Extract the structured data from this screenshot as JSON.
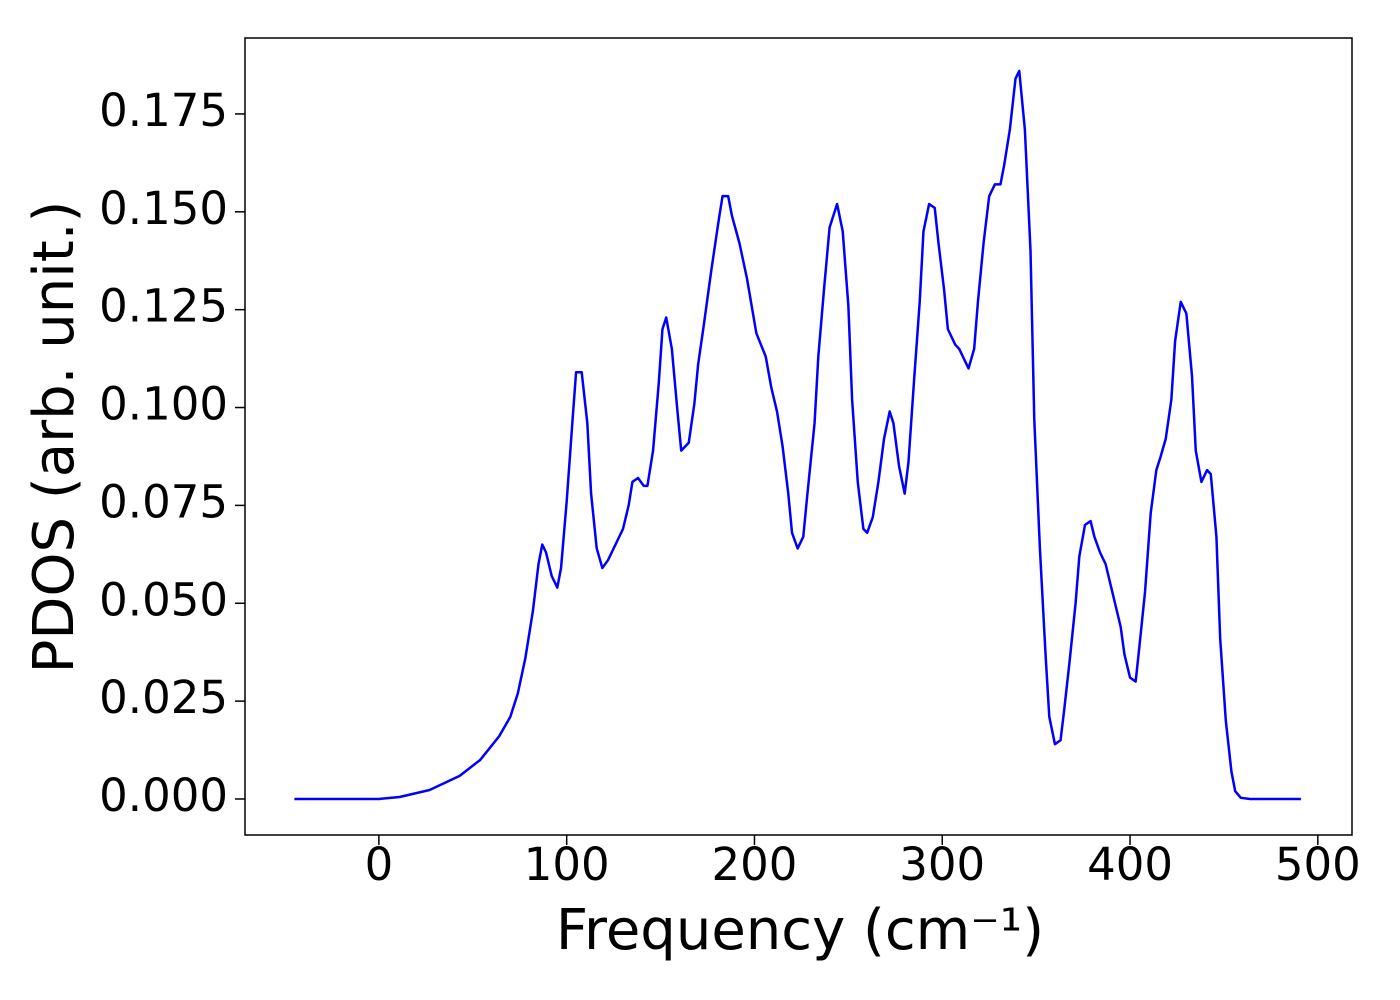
{
  "chart_data": {
    "type": "line",
    "x_label": "Frequency (cm⁻¹)",
    "y_label": "PDOS (arb. unit.)",
    "x": [
      -45,
      0,
      11,
      27,
      43,
      54,
      64,
      70,
      74,
      78,
      82,
      85,
      87,
      89,
      92,
      95,
      97,
      100,
      103,
      105,
      108,
      111,
      113,
      116,
      119,
      122,
      127,
      130,
      133,
      135,
      138,
      141,
      143,
      146,
      149,
      151,
      153,
      156,
      159,
      161,
      165,
      168,
      170,
      173,
      177,
      181,
      183,
      186,
      188,
      192,
      196,
      201,
      206,
      209,
      212,
      215,
      218,
      220,
      223,
      226,
      228,
      232,
      234,
      237,
      240,
      244,
      247,
      250,
      252,
      255,
      258,
      260,
      263,
      266,
      269,
      272,
      274,
      277,
      280,
      282,
      285,
      288,
      290,
      293,
      296,
      298,
      301,
      303,
      307,
      309,
      312,
      314,
      317,
      319,
      322,
      325,
      328,
      331,
      333,
      336,
      339,
      341,
      344,
      347,
      349,
      352,
      355,
      357,
      360,
      363,
      365,
      368,
      371,
      373,
      376,
      379,
      381,
      384,
      387,
      389,
      392,
      395,
      397,
      400,
      403,
      405,
      408,
      411,
      414,
      416,
      419,
      422,
      424,
      427,
      430,
      433,
      435,
      438,
      441,
      443,
      446,
      448,
      451,
      454,
      456,
      459,
      464,
      491
    ],
    "series": [
      {
        "name": "PDOS",
        "color": "#0000ff",
        "values": [
          0,
          0,
          0.0005,
          0.0023,
          0.0059,
          0.01,
          0.016,
          0.021,
          0.027,
          0.036,
          0.048,
          0.06,
          0.065,
          0.063,
          0.057,
          0.054,
          0.059,
          0.076,
          0.096,
          0.109,
          0.109,
          0.096,
          0.078,
          0.064,
          0.059,
          0.061,
          0.066,
          0.069,
          0.075,
          0.081,
          0.082,
          0.08,
          0.08,
          0.089,
          0.106,
          0.12,
          0.123,
          0.115,
          0.099,
          0.089,
          0.091,
          0.101,
          0.111,
          0.121,
          0.135,
          0.148,
          0.154,
          0.154,
          0.149,
          0.142,
          0.133,
          0.119,
          0.113,
          0.105,
          0.099,
          0.09,
          0.078,
          0.068,
          0.064,
          0.067,
          0.077,
          0.096,
          0.113,
          0.13,
          0.146,
          0.152,
          0.145,
          0.126,
          0.102,
          0.081,
          0.069,
          0.068,
          0.072,
          0.081,
          0.092,
          0.099,
          0.096,
          0.085,
          0.078,
          0.086,
          0.107,
          0.127,
          0.145,
          0.152,
          0.151,
          0.142,
          0.13,
          0.12,
          0.116,
          0.115,
          0.112,
          0.11,
          0.115,
          0.127,
          0.142,
          0.154,
          0.157,
          0.157,
          0.162,
          0.171,
          0.184,
          0.186,
          0.171,
          0.14,
          0.097,
          0.064,
          0.037,
          0.021,
          0.014,
          0.015,
          0.023,
          0.036,
          0.05,
          0.062,
          0.07,
          0.071,
          0.067,
          0.063,
          0.06,
          0.056,
          0.05,
          0.044,
          0.037,
          0.031,
          0.03,
          0.039,
          0.053,
          0.073,
          0.084,
          0.087,
          0.092,
          0.102,
          0.117,
          0.127,
          0.124,
          0.108,
          0.089,
          0.081,
          0.084,
          0.083,
          0.067,
          0.041,
          0.02,
          0.007,
          0.002,
          0.0003,
          0,
          0
        ]
      }
    ],
    "xlim": [
      -71.3,
      518.2
    ],
    "ylim": [
      -0.0092,
      0.1944
    ],
    "xticks": [
      0,
      100,
      200,
      300,
      400,
      500
    ],
    "yticks": [
      {
        "value": 0,
        "label": "0.000"
      },
      0.025,
      {
        "value": 0.05,
        "label": "0.050"
      },
      0.075,
      {
        "value": 0.1,
        "label": "0.100"
      },
      0.125,
      {
        "value": 0.15,
        "label": "0.150"
      },
      0.175
    ]
  }
}
